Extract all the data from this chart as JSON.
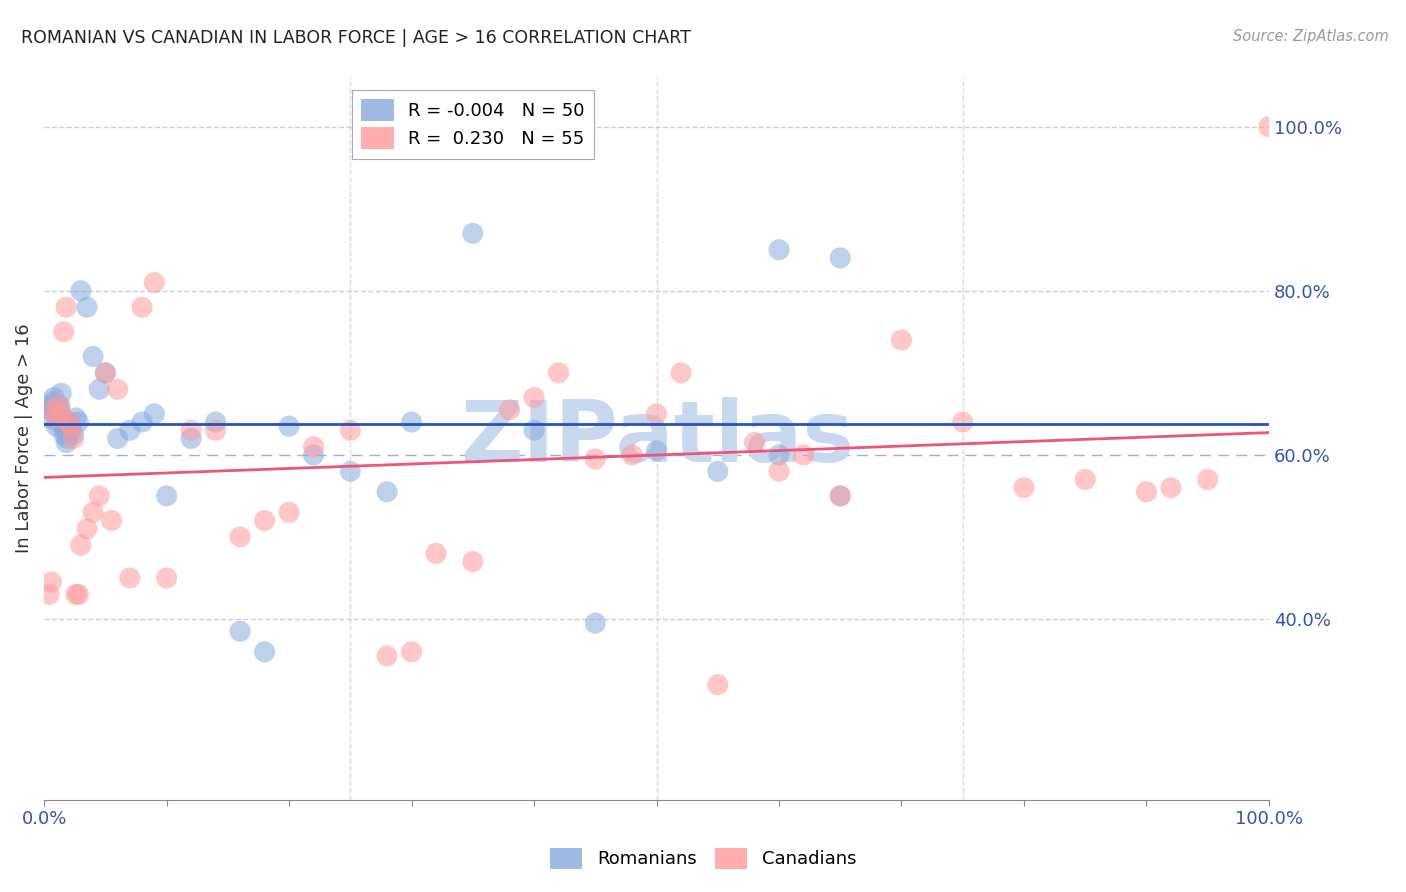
{
  "title": "ROMANIAN VS CANADIAN IN LABOR FORCE | AGE > 16 CORRELATION CHART",
  "source": "Source: ZipAtlas.com",
  "ylabel": "In Labor Force | Age > 16",
  "xlim": [
    0.0,
    1.0
  ],
  "ylim": [
    0.18,
    1.06
  ],
  "ytick_vals": [
    0.4,
    0.6,
    0.8,
    1.0
  ],
  "ytick_labels": [
    "40.0%",
    "60.0%",
    "80.0%",
    "100.0%"
  ],
  "legend_blue_r": "-0.004",
  "legend_blue_n": "50",
  "legend_pink_r": " 0.230",
  "legend_pink_n": "55",
  "blue_scatter_color": "#88AADD",
  "pink_scatter_color": "#FF9999",
  "blue_line_color": "#2255BB",
  "pink_line_color": "#EE5577",
  "axis_label_color": "#3355AA",
  "grid_color": "#BBBBBB",
  "watermark_color": "#C8D8EE",
  "blue_x": [
    0.003,
    0.005,
    0.006,
    0.007,
    0.008,
    0.009,
    0.01,
    0.011,
    0.012,
    0.013,
    0.014,
    0.015,
    0.016,
    0.017,
    0.018,
    0.019,
    0.02,
    0.021,
    0.022,
    0.024,
    0.026,
    0.028,
    0.03,
    0.035,
    0.04,
    0.045,
    0.05,
    0.06,
    0.07,
    0.08,
    0.09,
    0.1,
    0.12,
    0.14,
    0.16,
    0.18,
    0.2,
    0.22,
    0.25,
    0.28,
    0.3,
    0.35,
    0.4,
    0.45,
    0.5,
    0.55,
    0.6,
    0.65,
    0.65,
    0.6
  ],
  "blue_y": [
    0.645,
    0.655,
    0.66,
    0.665,
    0.67,
    0.65,
    0.635,
    0.64,
    0.655,
    0.66,
    0.675,
    0.64,
    0.625,
    0.63,
    0.615,
    0.62,
    0.635,
    0.64,
    0.63,
    0.625,
    0.645,
    0.64,
    0.8,
    0.78,
    0.72,
    0.68,
    0.7,
    0.62,
    0.63,
    0.64,
    0.65,
    0.55,
    0.62,
    0.64,
    0.385,
    0.36,
    0.635,
    0.6,
    0.58,
    0.555,
    0.64,
    0.87,
    0.63,
    0.395,
    0.605,
    0.58,
    0.6,
    0.55,
    0.84,
    0.85
  ],
  "pink_x": [
    0.004,
    0.006,
    0.008,
    0.01,
    0.012,
    0.014,
    0.016,
    0.018,
    0.02,
    0.022,
    0.024,
    0.026,
    0.028,
    0.03,
    0.035,
    0.04,
    0.045,
    0.05,
    0.055,
    0.06,
    0.07,
    0.08,
    0.09,
    0.1,
    0.12,
    0.14,
    0.16,
    0.18,
    0.2,
    0.22,
    0.25,
    0.28,
    0.3,
    0.32,
    0.35,
    0.38,
    0.4,
    0.42,
    0.45,
    0.48,
    0.5,
    0.52,
    0.55,
    0.58,
    0.6,
    0.62,
    0.65,
    0.7,
    0.75,
    0.8,
    0.85,
    0.9,
    0.92,
    0.95,
    1.0
  ],
  "pink_y": [
    0.43,
    0.445,
    0.655,
    0.645,
    0.66,
    0.65,
    0.75,
    0.78,
    0.64,
    0.635,
    0.62,
    0.43,
    0.43,
    0.49,
    0.51,
    0.53,
    0.55,
    0.7,
    0.52,
    0.68,
    0.45,
    0.78,
    0.81,
    0.45,
    0.63,
    0.63,
    0.5,
    0.52,
    0.53,
    0.61,
    0.63,
    0.355,
    0.36,
    0.48,
    0.47,
    0.655,
    0.67,
    0.7,
    0.595,
    0.6,
    0.65,
    0.7,
    0.32,
    0.615,
    0.58,
    0.6,
    0.55,
    0.74,
    0.64,
    0.56,
    0.57,
    0.555,
    0.56,
    0.57,
    1.0
  ]
}
